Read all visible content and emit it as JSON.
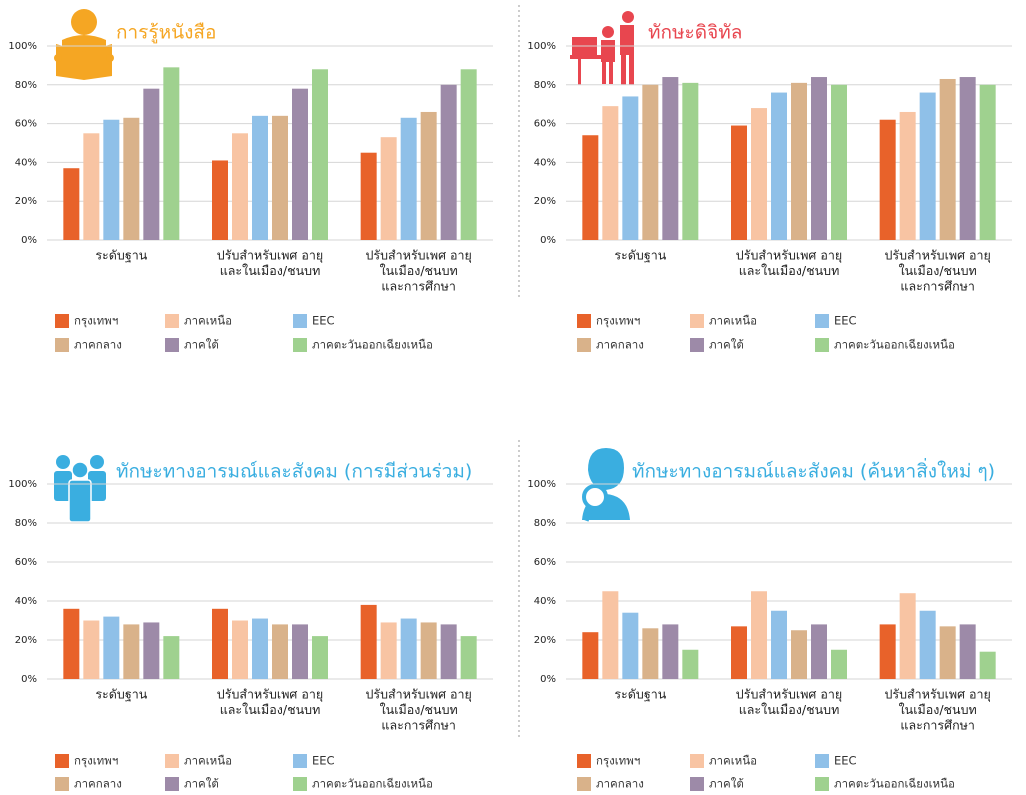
{
  "chart_data": [
    {
      "type": "bar",
      "title": "การรู้หนังสือ",
      "title_color": "#f5a623",
      "categories": [
        [
          "ระดับฐาน"
        ],
        [
          "ปรับสำหรับเพศ อายุ",
          "และในเมือง/ชนบท"
        ],
        [
          "ปรับสำหรับเพศ อายุ",
          "ในเมือง/ชนบท",
          "และการศึกษา"
        ]
      ],
      "ylim": [
        0,
        100
      ],
      "yticks": [
        {
          "value": 0,
          "label": "0%"
        },
        {
          "value": 20,
          "label": "20%"
        },
        {
          "value": 40,
          "label": "40%"
        },
        {
          "value": 60,
          "label": "60%"
        },
        {
          "value": 80,
          "label": "80%"
        },
        {
          "value": 100,
          "label": "100%"
        }
      ],
      "grid": true,
      "series": [
        {
          "name": "กรุงเทพฯ",
          "color": "#e8622a",
          "values": [
            37,
            41,
            45
          ]
        },
        {
          "name": "ภาคเหนือ",
          "color": "#f8c4a3",
          "values": [
            55,
            55,
            53
          ]
        },
        {
          "name": "EEC",
          "color": "#8fc0e8",
          "values": [
            62,
            64,
            63
          ]
        },
        {
          "name": "ภาคกลาง",
          "color": "#d9b28a",
          "values": [
            63,
            64,
            66
          ]
        },
        {
          "name": "ภาคใต้",
          "color": "#9d8aa8",
          "values": [
            78,
            78,
            80
          ]
        },
        {
          "name": "ภาคตะวันออกเฉียงเหนือ",
          "color": "#9fd18f",
          "values": [
            89,
            88,
            88
          ]
        }
      ]
    },
    {
      "type": "bar",
      "title": "ทักษะดิจิทัล",
      "title_color": "#e8464f",
      "categories": [
        [
          "ระดับฐาน"
        ],
        [
          "ปรับสำหรับเพศ อายุ",
          "และในเมือง/ชนบท"
        ],
        [
          "ปรับสำหรับเพศ อายุ",
          "ในเมือง/ชนบท",
          "และการศึกษา"
        ]
      ],
      "ylim": [
        0,
        100
      ],
      "yticks": [
        {
          "value": 0,
          "label": "0%"
        },
        {
          "value": 20,
          "label": "20%"
        },
        {
          "value": 40,
          "label": "40%"
        },
        {
          "value": 60,
          "label": "60%"
        },
        {
          "value": 80,
          "label": "80%"
        },
        {
          "value": 100,
          "label": "100%"
        }
      ],
      "grid": true,
      "series": [
        {
          "name": "กรุงเทพฯ",
          "color": "#e8622a",
          "values": [
            54,
            59,
            62
          ]
        },
        {
          "name": "ภาคเหนือ",
          "color": "#f8c4a3",
          "values": [
            69,
            68,
            66
          ]
        },
        {
          "name": "EEC",
          "color": "#8fc0e8",
          "values": [
            74,
            76,
            76
          ]
        },
        {
          "name": "ภาคกลาง",
          "color": "#d9b28a",
          "values": [
            80,
            81,
            83
          ]
        },
        {
          "name": "ภาคใต้",
          "color": "#9d8aa8",
          "values": [
            84,
            84,
            84
          ]
        },
        {
          "name": "ภาคตะวันออกเฉียงเหนือ",
          "color": "#9fd18f",
          "values": [
            81,
            80,
            80
          ]
        }
      ]
    },
    {
      "type": "bar",
      "title": "ทักษะทางอารมณ์และสังคม (การมีส่วนร่วม)",
      "title_color": "#3aaee0",
      "categories": [
        [
          "ระดับฐาน"
        ],
        [
          "ปรับสำหรับเพศ อายุ",
          "และในเมือง/ชนบท"
        ],
        [
          "ปรับสำหรับเพศ อายุ",
          "ในเมือง/ชนบท",
          "และการศึกษา"
        ]
      ],
      "ylim": [
        0,
        100
      ],
      "yticks": [
        {
          "value": 0,
          "label": "0%"
        },
        {
          "value": 20,
          "label": "20%"
        },
        {
          "value": 40,
          "label": "40%"
        },
        {
          "value": 60,
          "label": "60%"
        },
        {
          "value": 80,
          "label": "80%"
        },
        {
          "value": 100,
          "label": "100%"
        }
      ],
      "grid": true,
      "series": [
        {
          "name": "กรุงเทพฯ",
          "color": "#e8622a",
          "values": [
            36,
            36,
            38
          ]
        },
        {
          "name": "ภาคเหนือ",
          "color": "#f8c4a3",
          "values": [
            30,
            30,
            29
          ]
        },
        {
          "name": "EEC",
          "color": "#8fc0e8",
          "values": [
            32,
            31,
            31
          ]
        },
        {
          "name": "ภาคกลาง",
          "color": "#d9b28a",
          "values": [
            28,
            28,
            29
          ]
        },
        {
          "name": "ภาคใต้",
          "color": "#9d8aa8",
          "values": [
            29,
            28,
            28
          ]
        },
        {
          "name": "ภาคตะวันออกเฉียงเหนือ",
          "color": "#9fd18f",
          "values": [
            22,
            22,
            22
          ]
        }
      ]
    },
    {
      "type": "bar",
      "title": "ทักษะทางอารมณ์และสังคม (ค้นหาสิ่งใหม่ ๆ)",
      "title_color": "#3aaee0",
      "categories": [
        [
          "ระดับฐาน"
        ],
        [
          "ปรับสำหรับเพศ อายุ",
          "และในเมือง/ชนบท"
        ],
        [
          "ปรับสำหรับเพศ อายุ",
          "ในเมือง/ชนบท",
          "และการศึกษา"
        ]
      ],
      "ylim": [
        0,
        100
      ],
      "yticks": [
        {
          "value": 0,
          "label": "0%"
        },
        {
          "value": 20,
          "label": "20%"
        },
        {
          "value": 40,
          "label": "40%"
        },
        {
          "value": 60,
          "label": "60%"
        },
        {
          "value": 80,
          "label": "80%"
        },
        {
          "value": 100,
          "label": "100%"
        }
      ],
      "grid": true,
      "series": [
        {
          "name": "กรุงเทพฯ",
          "color": "#e8622a",
          "values": [
            24,
            27,
            28
          ]
        },
        {
          "name": "ภาคเหนือ",
          "color": "#f8c4a3",
          "values": [
            45,
            45,
            44
          ]
        },
        {
          "name": "EEC",
          "color": "#8fc0e8",
          "values": [
            34,
            35,
            35
          ]
        },
        {
          "name": "ภาคกลาง",
          "color": "#d9b28a",
          "values": [
            26,
            25,
            27
          ]
        },
        {
          "name": "ภาคใต้",
          "color": "#9d8aa8",
          "values": [
            28,
            28,
            28
          ]
        },
        {
          "name": "ภาคตะวันออกเฉียงเหนือ",
          "color": "#9fd18f",
          "values": [
            15,
            15,
            14
          ]
        }
      ]
    }
  ]
}
